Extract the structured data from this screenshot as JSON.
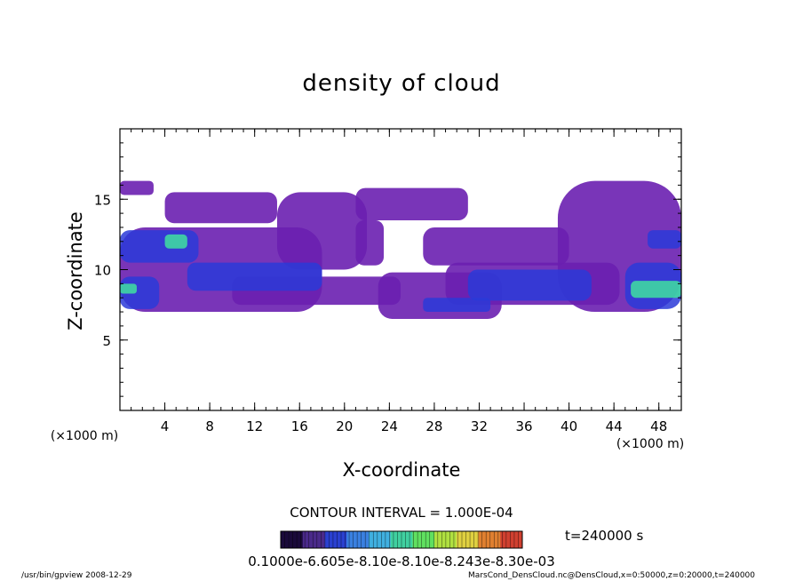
{
  "chart_data": {
    "type": "heatmap",
    "title": "density of cloud",
    "xlabel": "X-coordinate",
    "ylabel": "Z-coordinate",
    "x_unit": "(×1000 m)",
    "y_unit": "(×1000 m)",
    "xlim": [
      0,
      50
    ],
    "ylim": [
      0,
      20
    ],
    "x_ticks": [
      4,
      8,
      12,
      16,
      20,
      24,
      28,
      32,
      36,
      40,
      44,
      48
    ],
    "y_ticks": [
      5,
      10,
      15
    ],
    "contour_interval_text": "CONTOUR INTERVAL = 1.000E-04",
    "time_text": "t=240000 s",
    "colorbar_label_text": "0.1000e-6.605e-8.10e-8.10e-8.243e-8.30e-03",
    "colorbar_colors": [
      "#1a0a3a",
      "#4a2a8a",
      "#2a40d0",
      "#3a80e0",
      "#40b0e0",
      "#40d0a0",
      "#60e060",
      "#b0e040",
      "#e0d040",
      "#e08030",
      "#d04030"
    ],
    "footer_left": "/usr/bin/gpview   2008-12-29",
    "footer_right": "MarsCond_DensCloud.nc@DensCloud,x=0:50000,z=0:20000,t=240000",
    "cloud_regions": [
      {
        "level": 1,
        "x0": 0,
        "x1": 18,
        "z0": 7.0,
        "z1": 13.0
      },
      {
        "level": 1,
        "x0": 0,
        "x1": 3,
        "z0": 15.3,
        "z1": 16.3
      },
      {
        "level": 1,
        "x0": 4,
        "x1": 14,
        "z0": 13.3,
        "z1": 15.5
      },
      {
        "level": 1,
        "x0": 14,
        "x1": 22,
        "z0": 10.0,
        "z1": 15.5
      },
      {
        "level": 1,
        "x0": 10,
        "x1": 25,
        "z0": 7.5,
        "z1": 9.5
      },
      {
        "level": 1,
        "x0": 21,
        "x1": 31,
        "z0": 13.5,
        "z1": 15.8
      },
      {
        "level": 1,
        "x0": 21,
        "x1": 23.5,
        "z0": 10.3,
        "z1": 13.5
      },
      {
        "level": 1,
        "x0": 27,
        "x1": 40,
        "z0": 10.3,
        "z1": 13.0
      },
      {
        "level": 1,
        "x0": 23,
        "x1": 34,
        "z0": 6.5,
        "z1": 9.8
      },
      {
        "level": 1,
        "x0": 29,
        "x1": 44.5,
        "z0": 7.5,
        "z1": 10.5
      },
      {
        "level": 1,
        "x0": 39,
        "x1": 50,
        "z0": 7.0,
        "z1": 16.3
      },
      {
        "level": 2,
        "x0": 0,
        "x1": 7,
        "z0": 10.5,
        "z1": 12.8
      },
      {
        "level": 2,
        "x0": 0,
        "x1": 3.5,
        "z0": 7.2,
        "z1": 9.5
      },
      {
        "level": 2,
        "x0": 6,
        "x1": 18,
        "z0": 8.5,
        "z1": 10.5
      },
      {
        "level": 2,
        "x0": 27,
        "x1": 33,
        "z0": 7.0,
        "z1": 8.0
      },
      {
        "level": 2,
        "x0": 31,
        "x1": 42,
        "z0": 7.8,
        "z1": 10.0
      },
      {
        "level": 2,
        "x0": 45,
        "x1": 50,
        "z0": 7.2,
        "z1": 10.5
      },
      {
        "level": 2,
        "x0": 47,
        "x1": 50,
        "z0": 11.5,
        "z1": 12.8
      },
      {
        "level": 3,
        "x0": 0,
        "x1": 1.5,
        "z0": 8.3,
        "z1": 9.0
      },
      {
        "level": 3,
        "x0": 4,
        "x1": 6,
        "z0": 11.5,
        "z1": 12.5
      },
      {
        "level": 3,
        "x0": 45.5,
        "x1": 50,
        "z0": 8.0,
        "z1": 9.2
      }
    ]
  }
}
